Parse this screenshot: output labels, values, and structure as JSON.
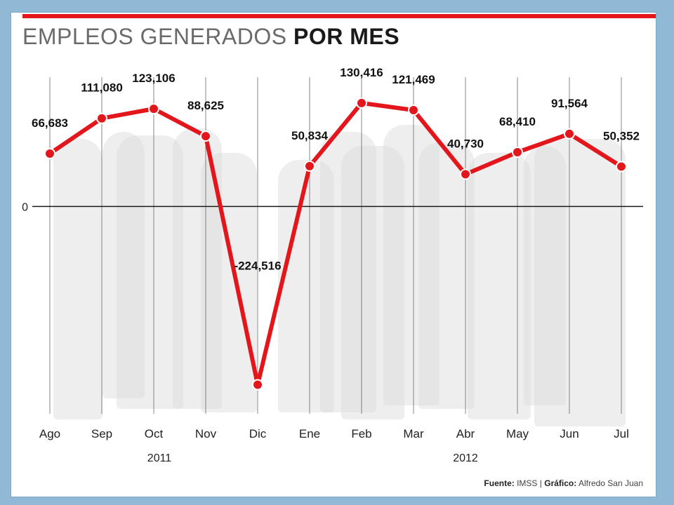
{
  "theme": {
    "accent": "#e3161c",
    "band": "#d9d9d9"
  },
  "header": {
    "title_regular": "EMPLEOS GENERADOS",
    "title_bold": "POR MES"
  },
  "footer": {
    "source_label": "Fuente:",
    "source_value": "IMSS",
    "separator": "|",
    "credit_label": "Gráfico:",
    "credit_value": "Alfredo San Juan"
  },
  "chart_data": {
    "type": "line",
    "title": "EMPLEOS GENERADOS POR MES",
    "categories": [
      "Ago",
      "Sep",
      "Oct",
      "Nov",
      "Dic",
      "Ene",
      "Feb",
      "Mar",
      "Abr",
      "May",
      "Jun",
      "Jul"
    ],
    "value_labels": [
      "66,683",
      "111,080",
      "123,106",
      "88,625",
      "-224,516",
      "50,834",
      "130,416",
      "121,469",
      "40,730",
      "68,410",
      "91,564",
      "50,352"
    ],
    "series": [
      {
        "values": [
          66683,
          111080,
          123106,
          88625,
          -224516,
          50834,
          130416,
          121469,
          40730,
          68410,
          91564,
          50352
        ]
      }
    ],
    "zero_label": "0",
    "ylim": [
      -240000,
      140000
    ],
    "groups": [
      {
        "label": "2011",
        "from": 0,
        "to": 4
      },
      {
        "label": "2012",
        "from": 5,
        "to": 11
      }
    ],
    "color": "#e3161c",
    "grid": "vertical lines at each month"
  }
}
